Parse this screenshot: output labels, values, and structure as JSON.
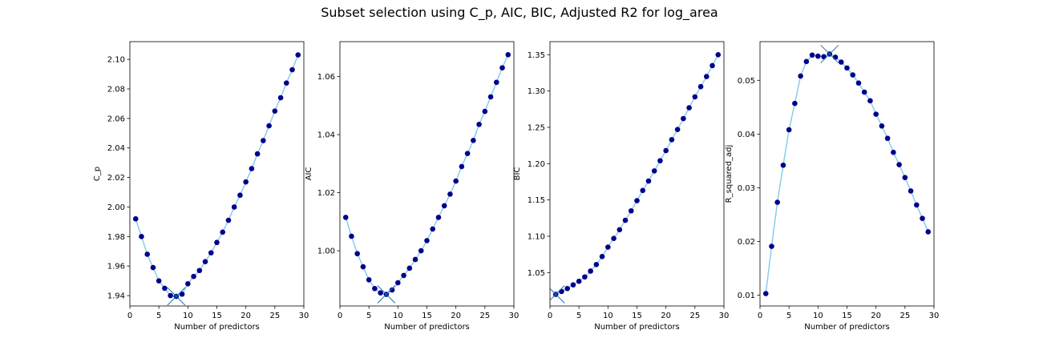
{
  "figure": {
    "suptitle": "Subset selection using C_p, AIC, BIC, Adjusted R2 for log_area"
  },
  "colors": {
    "line": "#87ceeb",
    "marker": "#00008b",
    "best_marker": "#1f77b4",
    "axes": "#000000"
  },
  "chart_data": [
    {
      "type": "line",
      "markers": "scatter",
      "xlabel": "Number of predictors",
      "ylabel": "C_p",
      "xlim": [
        0,
        30
      ],
      "ylim": [
        1.933,
        2.112
      ],
      "xticks": [
        0,
        5,
        10,
        15,
        20,
        25,
        30
      ],
      "yticks": [
        1.94,
        1.96,
        1.98,
        2.0,
        2.02,
        2.04,
        2.06,
        2.08,
        2.1
      ],
      "ytick_labels": [
        "1.94",
        "1.96",
        "1.98",
        "2.00",
        "2.02",
        "2.04",
        "2.06",
        "2.08",
        "2.10"
      ],
      "best": {
        "x": 8,
        "y": 1.9395
      },
      "x": [
        1,
        2,
        3,
        4,
        5,
        6,
        7,
        8,
        9,
        10,
        11,
        12,
        13,
        14,
        15,
        16,
        17,
        18,
        19,
        20,
        21,
        22,
        23,
        24,
        25,
        26,
        27,
        28,
        29
      ],
      "y": [
        1.992,
        1.98,
        1.968,
        1.959,
        1.95,
        1.945,
        1.94,
        1.9395,
        1.941,
        1.948,
        1.953,
        1.957,
        1.963,
        1.969,
        1.976,
        1.983,
        1.991,
        2.0,
        2.008,
        2.017,
        2.026,
        2.036,
        2.045,
        2.055,
        2.065,
        2.074,
        2.084,
        2.093,
        2.103
      ]
    },
    {
      "type": "line",
      "markers": "scatter",
      "xlabel": "Number of predictors",
      "ylabel": "AIC",
      "xlim": [
        0,
        30
      ],
      "ylim": [
        0.981,
        1.072
      ],
      "xticks": [
        0,
        5,
        10,
        15,
        20,
        25,
        30
      ],
      "yticks": [
        1.0,
        1.02,
        1.04,
        1.06
      ],
      "ytick_labels": [
        "1.00",
        "1.02",
        "1.04",
        "1.06"
      ],
      "best": {
        "x": 8,
        "y": 0.985
      },
      "x": [
        1,
        2,
        3,
        4,
        5,
        6,
        7,
        8,
        9,
        10,
        11,
        12,
        13,
        14,
        15,
        16,
        17,
        18,
        19,
        20,
        21,
        22,
        23,
        24,
        25,
        26,
        27,
        28,
        29
      ],
      "y": [
        1.0115,
        1.005,
        0.999,
        0.9945,
        0.99,
        0.987,
        0.9855,
        0.985,
        0.9865,
        0.989,
        0.9915,
        0.994,
        0.997,
        1.0,
        1.0035,
        1.0075,
        1.0115,
        1.0155,
        1.0195,
        1.024,
        1.029,
        1.0335,
        1.038,
        1.0435,
        1.048,
        1.053,
        1.058,
        1.063,
        1.0675
      ]
    },
    {
      "type": "line",
      "markers": "scatter",
      "xlabel": "Number of predictors",
      "ylabel": "BIC",
      "xlim": [
        0,
        30
      ],
      "ylim": [
        1.004,
        1.368
      ],
      "xticks": [
        0,
        5,
        10,
        15,
        20,
        25,
        30
      ],
      "yticks": [
        1.05,
        1.1,
        1.15,
        1.2,
        1.25,
        1.3,
        1.35
      ],
      "ytick_labels": [
        "1.05",
        "1.10",
        "1.15",
        "1.20",
        "1.25",
        "1.30",
        "1.35"
      ],
      "best": {
        "x": 1,
        "y": 1.02
      },
      "x": [
        1,
        2,
        3,
        4,
        5,
        6,
        7,
        8,
        9,
        10,
        11,
        12,
        13,
        14,
        15,
        16,
        17,
        18,
        19,
        20,
        21,
        22,
        23,
        24,
        25,
        26,
        27,
        28,
        29
      ],
      "y": [
        1.02,
        1.024,
        1.028,
        1.033,
        1.038,
        1.044,
        1.052,
        1.061,
        1.072,
        1.085,
        1.097,
        1.109,
        1.122,
        1.135,
        1.149,
        1.163,
        1.176,
        1.19,
        1.204,
        1.218,
        1.233,
        1.247,
        1.262,
        1.277,
        1.292,
        1.306,
        1.32,
        1.335,
        1.35
      ]
    },
    {
      "type": "line",
      "markers": "scatter",
      "xlabel": "Number of predictors",
      "ylabel": "R_squared_adj",
      "xlim": [
        0,
        30
      ],
      "ylim": [
        0.008,
        0.0572
      ],
      "xticks": [
        0,
        5,
        10,
        15,
        20,
        25,
        30
      ],
      "yticks": [
        0.01,
        0.02,
        0.03,
        0.04,
        0.05
      ],
      "ytick_labels": [
        "0.01",
        "0.02",
        "0.03",
        "0.04",
        "0.05"
      ],
      "best": {
        "x": 12,
        "y": 0.0549
      },
      "x": [
        1,
        2,
        3,
        4,
        5,
        6,
        7,
        8,
        9,
        10,
        11,
        12,
        13,
        14,
        15,
        16,
        17,
        18,
        19,
        20,
        21,
        22,
        23,
        24,
        25,
        26,
        27,
        28,
        29
      ],
      "y": [
        0.0103,
        0.0191,
        0.0273,
        0.0342,
        0.0408,
        0.0457,
        0.0508,
        0.0535,
        0.0547,
        0.0545,
        0.0544,
        0.0549,
        0.0543,
        0.0534,
        0.0523,
        0.051,
        0.0495,
        0.0478,
        0.0462,
        0.0437,
        0.0415,
        0.0392,
        0.0366,
        0.0343,
        0.0319,
        0.0294,
        0.0268,
        0.0243,
        0.0218
      ]
    }
  ]
}
